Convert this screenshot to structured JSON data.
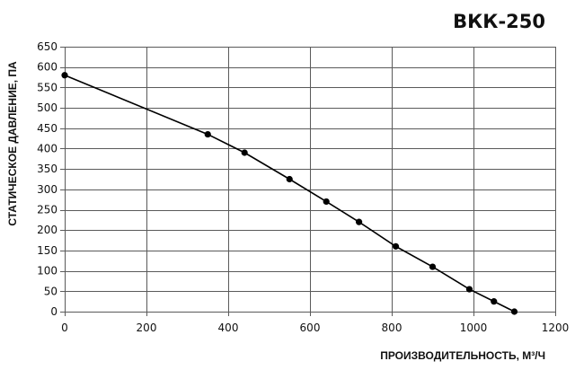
{
  "chart_data": {
    "type": "line",
    "title": "ВКК-250",
    "xlabel": "ПРОИЗВОДИТЕЛЬНОСТЬ, М³/Ч",
    "ylabel": "СТАТИЧЕСКОЕ ДАВЛЕНИЕ, ПА",
    "xlim": [
      0,
      1200
    ],
    "ylim": [
      0,
      650
    ],
    "xticks": [
      0,
      200,
      400,
      600,
      800,
      1000,
      1200
    ],
    "yticks": [
      0,
      50,
      100,
      150,
      200,
      250,
      300,
      350,
      400,
      450,
      500,
      550,
      600,
      650
    ],
    "grid": true,
    "legend": "none",
    "series": [
      {
        "x": [
          0,
          350,
          440,
          550,
          640,
          720,
          810,
          900,
          990,
          1050,
          1100
        ],
        "y": [
          580,
          435,
          390,
          325,
          270,
          220,
          160,
          110,
          55,
          25,
          0
        ],
        "color": "#000000",
        "markers": true
      }
    ]
  }
}
